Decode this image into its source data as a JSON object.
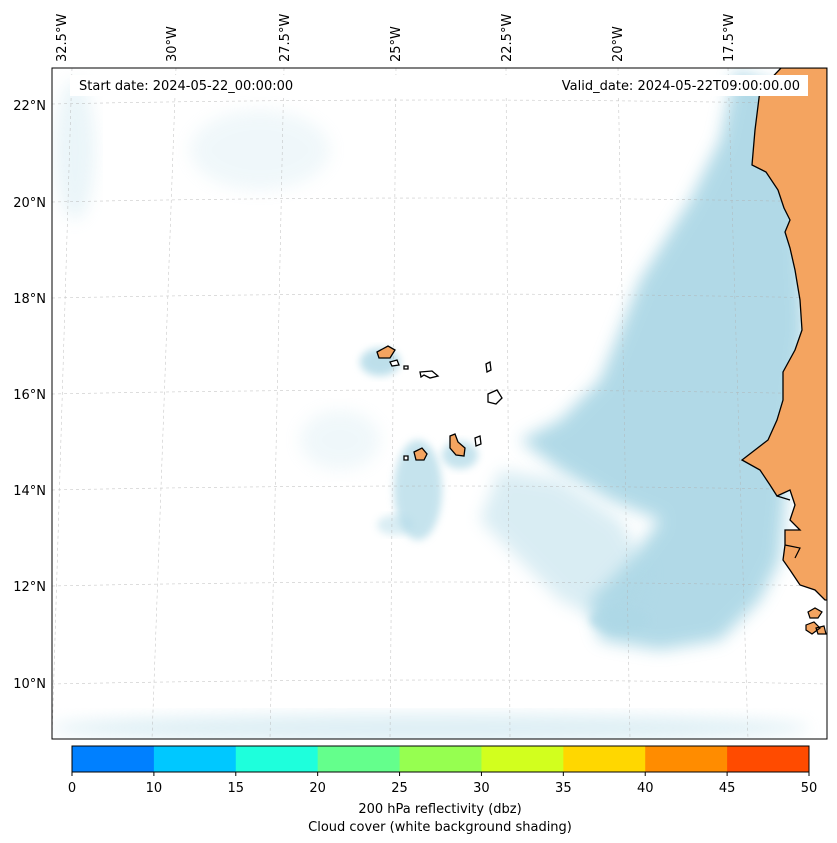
{
  "header": {
    "start_date": "Start date: 2024-05-22_00:00:00",
    "valid_date": "Valid_date: 2024-05-22T09:00:00.00"
  },
  "axes": {
    "lon_labels": [
      "32.5°W",
      "30°W",
      "27.5°W",
      "25°W",
      "22.5°W",
      "20°W",
      "17.5°W"
    ],
    "lat_labels": [
      "22°N",
      "20°N",
      "18°N",
      "16°N",
      "14°N",
      "12°N",
      "10°N"
    ],
    "gridlines": true
  },
  "colorbar": {
    "ticks": [
      "0",
      "10",
      "15",
      "20",
      "25",
      "30",
      "35",
      "40",
      "45",
      "50"
    ],
    "colors": [
      "#0080ff",
      "#00c8ff",
      "#1effdc",
      "#64ff8c",
      "#96ff50",
      "#d2ff1e",
      "#ffd700",
      "#ff8c00",
      "#ff4b00"
    ],
    "label_line1": "200 hPa reflectivity (dbz)",
    "label_line2": "Cloud cover (white background shading)"
  },
  "style": {
    "land_color": "#f4a460",
    "cloud_color": "#add8e6",
    "ocean_color": "#ffffff"
  }
}
